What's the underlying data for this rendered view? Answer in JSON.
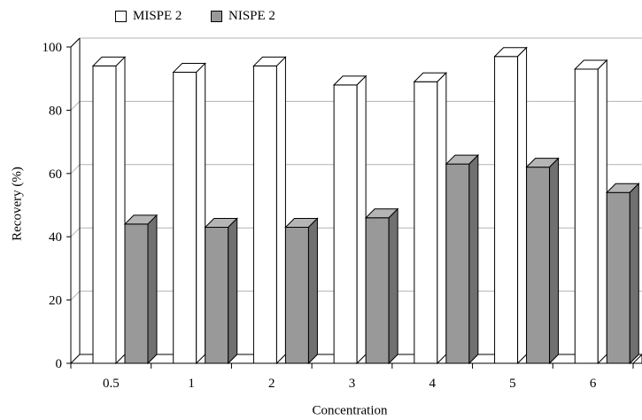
{
  "chart_data": {
    "type": "bar",
    "style": "3d-clustered",
    "categories": [
      "0.5",
      "1",
      "2",
      "3",
      "4",
      "5",
      "6"
    ],
    "series": [
      {
        "name": "MISPE 2",
        "values": [
          94,
          92,
          94,
          88,
          89,
          97,
          93
        ],
        "color": "#ffffff"
      },
      {
        "name": "NISPE 2",
        "values": [
          44,
          43,
          43,
          46,
          63,
          62,
          54
        ],
        "color": "#999999"
      }
    ],
    "title": "",
    "xlabel": "Concentration",
    "ylabel": "Recovery (%)",
    "ylim": [
      0,
      100
    ],
    "yticks": [
      0,
      20,
      40,
      60,
      80,
      100
    ],
    "grid": true,
    "legend_position": "top-left"
  }
}
